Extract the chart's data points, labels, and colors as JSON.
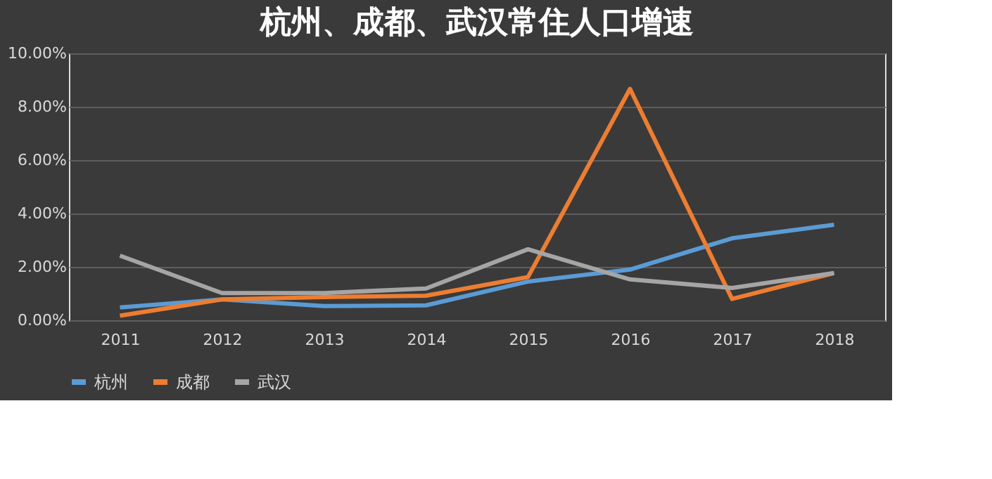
{
  "chart_data": {
    "type": "line",
    "title": "杭州、成都、武汉常住人口增速",
    "categories": [
      "2011",
      "2012",
      "2013",
      "2014",
      "2015",
      "2016",
      "2017",
      "2018"
    ],
    "series": [
      {
        "name": "杭州",
        "color": "#5b9bd5",
        "values": [
          0.48,
          0.78,
          0.53,
          0.56,
          1.45,
          1.9,
          3.07,
          3.58
        ]
      },
      {
        "name": "成都",
        "color": "#ed7d31",
        "values": [
          0.17,
          0.78,
          0.87,
          0.92,
          1.62,
          8.67,
          0.8,
          1.77
        ]
      },
      {
        "name": "武汉",
        "color": "#a5a5a5",
        "values": [
          2.42,
          1.02,
          1.02,
          1.19,
          2.66,
          1.53,
          1.21,
          1.77
        ]
      }
    ],
    "ylim": [
      0,
      10
    ],
    "yticks": [
      {
        "value": 0,
        "label": "0.00%"
      },
      {
        "value": 2,
        "label": "2.00%"
      },
      {
        "value": 4,
        "label": "4.00%"
      },
      {
        "value": 6,
        "label": "6.00%"
      },
      {
        "value": 8,
        "label": "8.00%"
      },
      {
        "value": 10,
        "label": "10.00%"
      }
    ],
    "grid": "y",
    "legend": "bottom",
    "marker": "none",
    "line_style": "solid"
  }
}
